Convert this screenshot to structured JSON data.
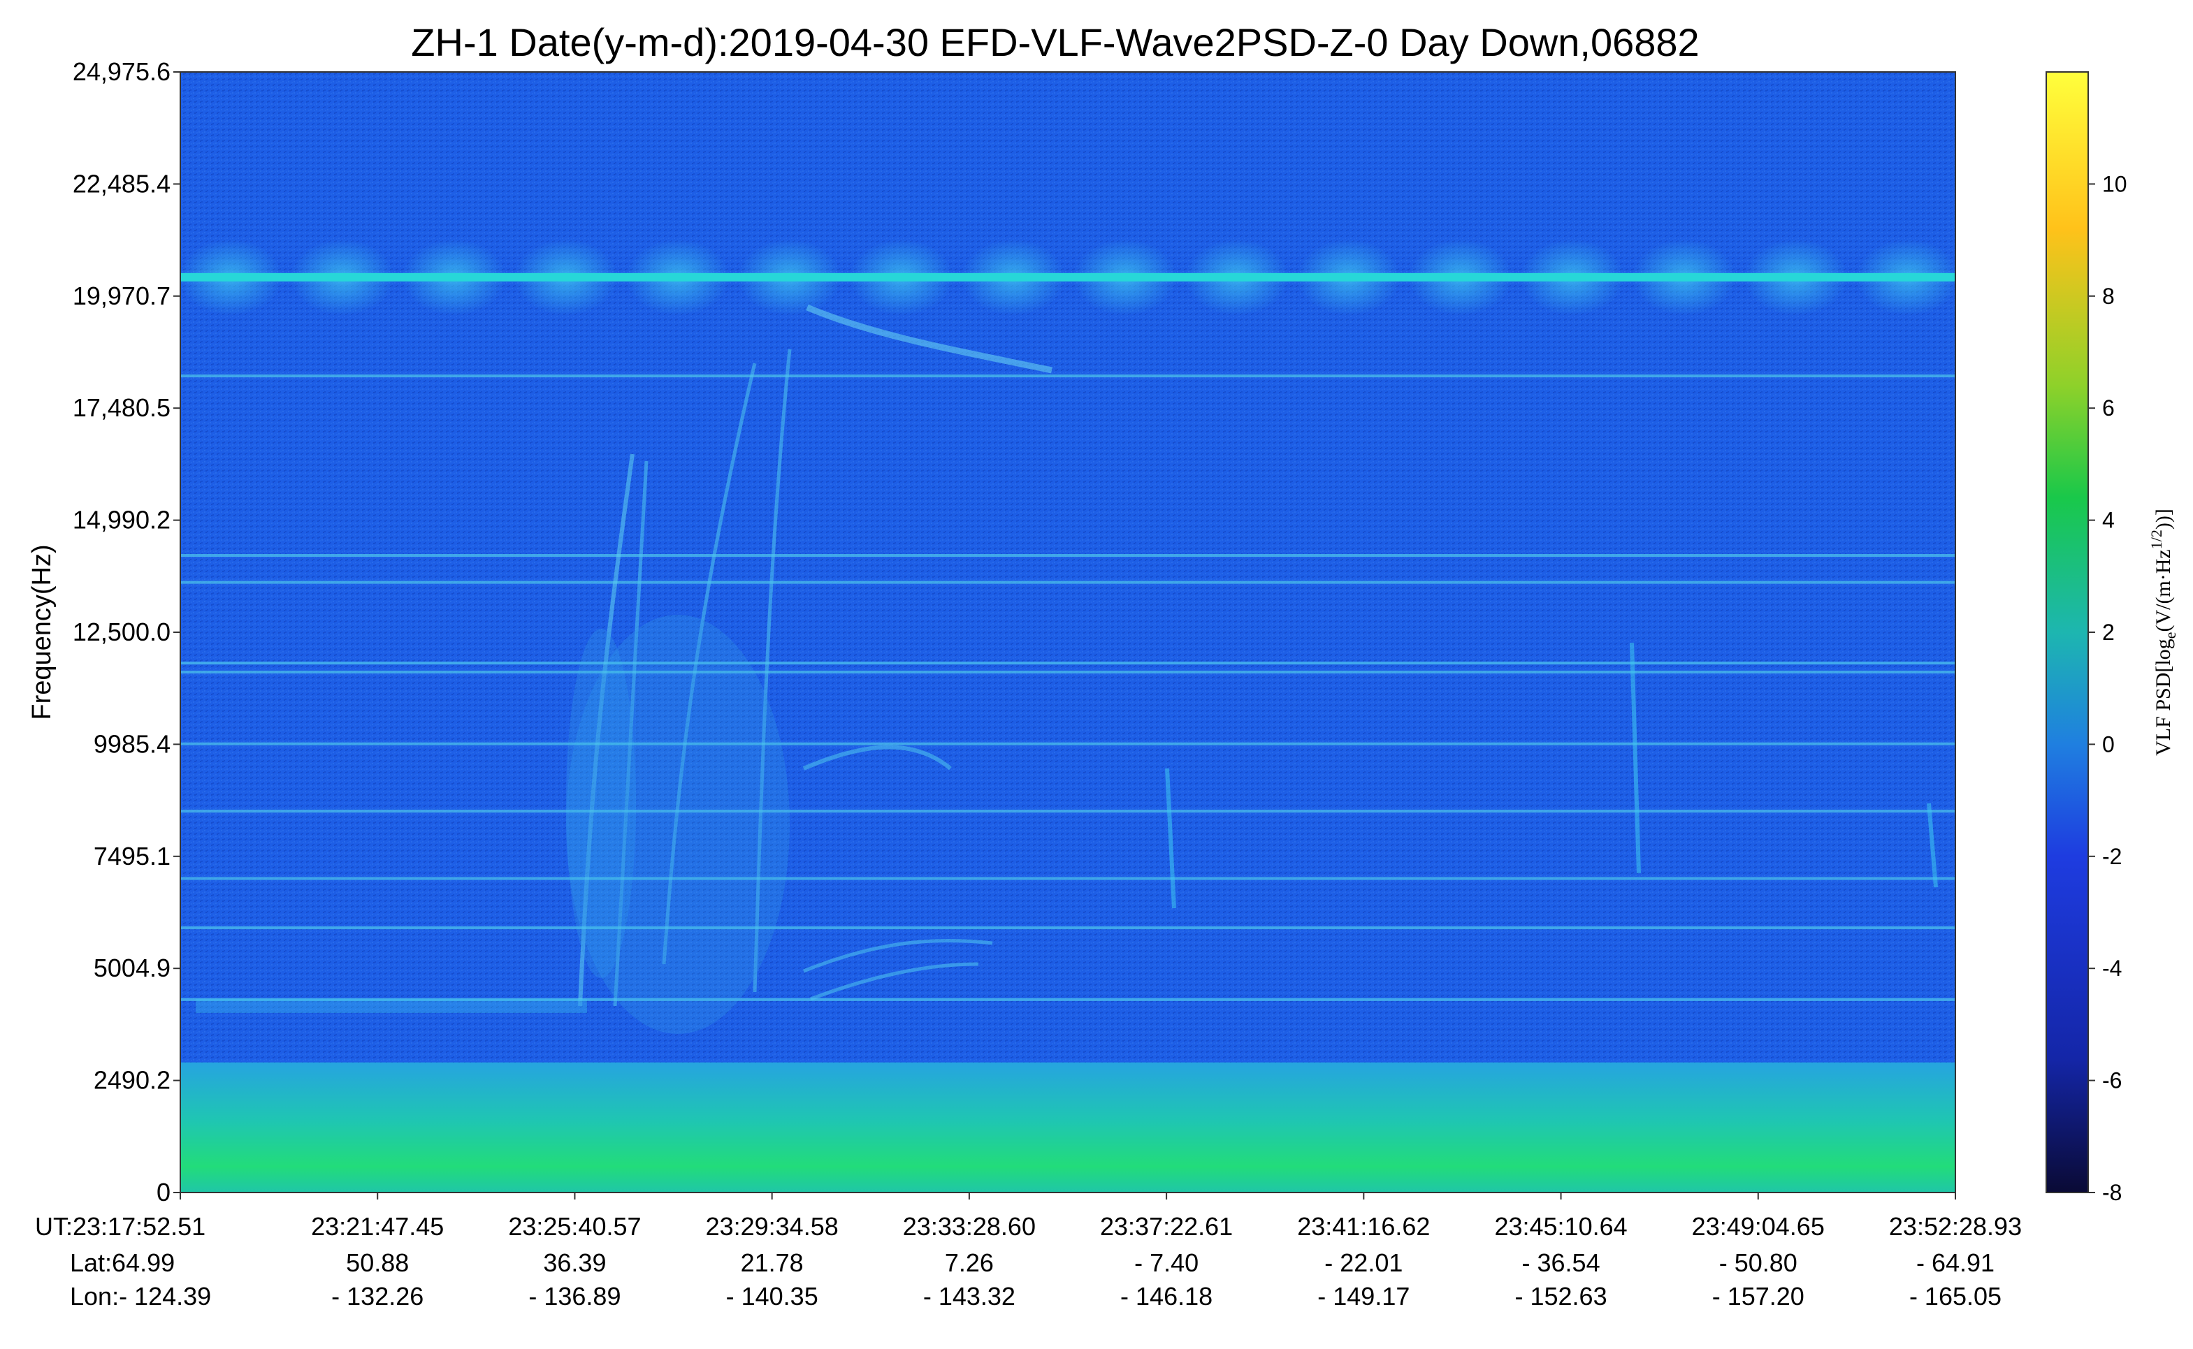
{
  "chart_data": {
    "type": "heatmap",
    "title": "ZH-1  Date(y-m-d):2019-04-30  EFD-VLF-Wave2PSD-Z-0 Day Down,06882",
    "ylabel": "Frequency(Hz)",
    "ylim": [
      0,
      24975.6
    ],
    "y_ticks": [
      "0",
      "2490.2",
      "5004.9",
      "7495.1",
      "9985.4",
      "12,500.0",
      "14,990.2",
      "17,480.5",
      "19,970.7",
      "22,485.4",
      "24,975.6"
    ],
    "x_ticks": [
      {
        "ut": "UT:23:17:52.51",
        "lat": "Lat:64.99",
        "lon": "Lon:- 124.39"
      },
      {
        "ut": "23:21:47.45",
        "lat": "50.88",
        "lon": "- 132.26"
      },
      {
        "ut": "23:25:40.57",
        "lat": "36.39",
        "lon": "- 136.89"
      },
      {
        "ut": "23:29:34.58",
        "lat": "21.78",
        "lon": "- 140.35"
      },
      {
        "ut": "23:33:28.60",
        "lat": "7.26",
        "lon": "- 143.32"
      },
      {
        "ut": "23:37:22.61",
        "lat": "- 7.40",
        "lon": "- 146.18"
      },
      {
        "ut": "23:41:16.62",
        "lat": "- 22.01",
        "lon": "- 149.17"
      },
      {
        "ut": "23:45:10.64",
        "lat": "- 36.54",
        "lon": "- 152.63"
      },
      {
        "ut": "23:49:04.65",
        "lat": "- 50.80",
        "lon": "- 157.20"
      },
      {
        "ut": "23:52:28.93",
        "lat": "- 64.91",
        "lon": "- 165.05"
      }
    ],
    "colorbar": {
      "label_main": "VLF PSD[log",
      "label_sub": "e",
      "label_mid": "(V/(m·Hz",
      "label_sup": "1/2",
      "label_end": "))]",
      "range": [
        -8,
        12
      ],
      "ticks": [
        "10",
        "8",
        "6",
        "4",
        "2",
        "0",
        "-2",
        "-4",
        "-6",
        "-8"
      ],
      "colors": [
        "#0a0a35",
        "#1426a8",
        "#1e3ce0",
        "#1f7fe0",
        "#1db6b0",
        "#19c84a",
        "#8ed12a",
        "#ffc21a",
        "#ffff3c"
      ]
    },
    "features": {
      "background": "#1d5ee6",
      "low_band": {
        "freq_range": [
          0,
          2900
        ],
        "color": "#1fd49a"
      },
      "transmitter_line": {
        "freq": 20400,
        "color": "#27d7d8"
      },
      "horizontal_lines": [
        4300,
        5900,
        7000,
        8500,
        10000,
        11600,
        11800,
        13600,
        14200,
        18200
      ]
    }
  }
}
